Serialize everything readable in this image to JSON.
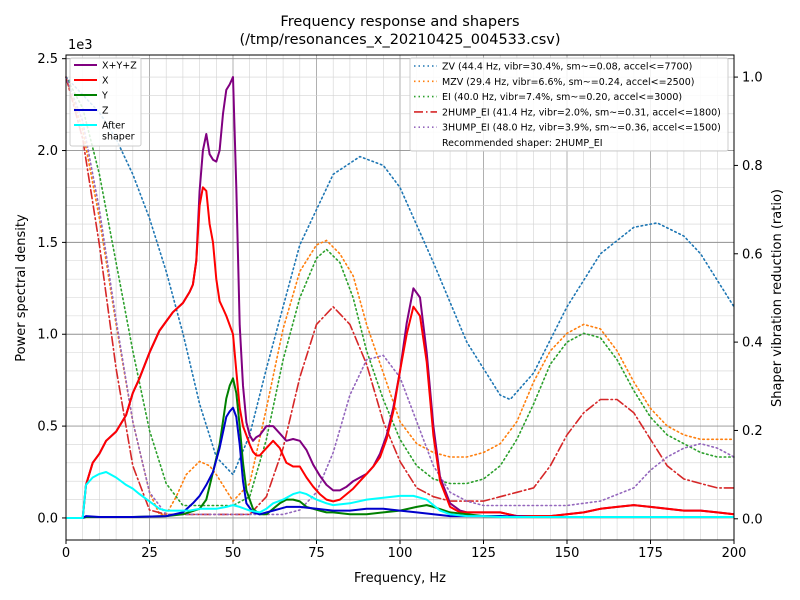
{
  "chart_data": {
    "type": "line",
    "title_line1": "Frequency response and shapers",
    "title_line2": "(/tmp/resonances_x_20210425_004533.csv)",
    "xlabel": "Frequency, Hz",
    "ylabel_left": "Power spectral density",
    "ylabel_right": "Shaper vibration reduction (ratio)",
    "left_scale_label": "1e3",
    "xlim": [
      0,
      200
    ],
    "ylim_left": [
      -0.12,
      2.52
    ],
    "ylim_right": [
      -0.048,
      1.05
    ],
    "x_ticks": [
      0,
      25,
      50,
      75,
      100,
      125,
      150,
      175,
      200
    ],
    "x_tick_labels": [
      "0",
      "25",
      "50",
      "75",
      "100",
      "125",
      "150",
      "175",
      "200"
    ],
    "y_ticks_left": [
      0,
      0.5,
      1.0,
      1.5,
      2.0,
      2.5
    ],
    "y_tick_labels_left": [
      "0.0",
      "0.5",
      "1.0",
      "1.5",
      "2.0",
      "2.5"
    ],
    "y_ticks_right": [
      0,
      0.2,
      0.4,
      0.6,
      0.8,
      1.0
    ],
    "y_tick_labels_right": [
      "0.0",
      "0.2",
      "0.4",
      "0.6",
      "0.8",
      "1.0"
    ],
    "grid": true,
    "psd_series": [
      {
        "name": "X+Y+Z",
        "color": "#800080",
        "width": 2,
        "x": [
          0,
          5,
          6,
          8,
          10,
          12,
          15,
          18,
          20,
          22,
          25,
          28,
          30,
          32,
          35,
          37,
          38,
          39,
          40,
          41,
          42,
          43,
          44,
          45,
          46,
          47,
          48,
          49,
          50,
          51,
          52,
          53,
          54,
          55,
          56,
          57,
          58,
          60,
          62,
          64,
          66,
          68,
          70,
          72,
          74,
          76,
          78,
          80,
          82,
          84,
          86,
          88,
          90,
          92,
          94,
          96,
          98,
          100,
          102,
          104,
          106,
          108,
          110,
          112,
          115,
          118,
          120,
          125,
          130,
          135,
          140,
          145,
          150,
          155,
          160,
          165,
          170,
          175,
          180,
          185,
          190,
          195,
          200
        ],
        "y": [
          0,
          0,
          0.18,
          0.3,
          0.35,
          0.42,
          0.47,
          0.56,
          0.68,
          0.76,
          0.9,
          1.02,
          1.07,
          1.12,
          1.17,
          1.23,
          1.27,
          1.4,
          1.78,
          2.0,
          2.09,
          1.98,
          1.95,
          1.94,
          2.0,
          2.2,
          2.33,
          2.36,
          2.4,
          1.8,
          1.05,
          0.72,
          0.52,
          0.45,
          0.42,
          0.44,
          0.45,
          0.5,
          0.5,
          0.46,
          0.42,
          0.43,
          0.42,
          0.37,
          0.29,
          0.23,
          0.18,
          0.15,
          0.15,
          0.17,
          0.2,
          0.22,
          0.24,
          0.28,
          0.35,
          0.45,
          0.6,
          0.8,
          1.06,
          1.25,
          1.2,
          0.9,
          0.5,
          0.22,
          0.08,
          0.04,
          0.03,
          0.03,
          0.03,
          0.01,
          0.01,
          0.01,
          0.02,
          0.03,
          0.05,
          0.06,
          0.07,
          0.06,
          0.05,
          0.04,
          0.04,
          0.03,
          0.02
        ]
      },
      {
        "name": "X",
        "color": "#ff0000",
        "width": 2,
        "x": [
          0,
          5,
          6,
          8,
          10,
          12,
          15,
          18,
          20,
          22,
          25,
          28,
          30,
          32,
          35,
          37,
          38,
          39,
          40,
          41,
          42,
          43,
          44,
          45,
          46,
          47,
          48,
          49,
          50,
          51,
          52,
          53,
          54,
          55,
          56,
          57,
          58,
          60,
          62,
          64,
          66,
          68,
          70,
          72,
          74,
          76,
          78,
          80,
          82,
          84,
          86,
          88,
          90,
          92,
          94,
          96,
          98,
          100,
          102,
          104,
          106,
          108,
          110,
          112,
          115,
          118,
          120,
          125,
          130,
          135,
          140,
          145,
          150,
          155,
          160,
          165,
          170,
          175,
          180,
          185,
          190,
          195,
          200
        ],
        "y": [
          0,
          0,
          0.18,
          0.3,
          0.35,
          0.42,
          0.47,
          0.56,
          0.68,
          0.76,
          0.9,
          1.02,
          1.07,
          1.12,
          1.17,
          1.23,
          1.27,
          1.4,
          1.7,
          1.8,
          1.78,
          1.6,
          1.5,
          1.3,
          1.18,
          1.14,
          1.1,
          1.05,
          1.0,
          0.8,
          0.6,
          0.5,
          0.45,
          0.4,
          0.36,
          0.34,
          0.34,
          0.38,
          0.42,
          0.38,
          0.3,
          0.28,
          0.28,
          0.22,
          0.17,
          0.13,
          0.1,
          0.09,
          0.1,
          0.13,
          0.16,
          0.2,
          0.24,
          0.28,
          0.33,
          0.43,
          0.58,
          0.8,
          1.0,
          1.15,
          1.1,
          0.85,
          0.45,
          0.2,
          0.06,
          0.03,
          0.03,
          0.03,
          0.03,
          0.01,
          0.01,
          0.01,
          0.02,
          0.03,
          0.05,
          0.06,
          0.07,
          0.06,
          0.05,
          0.04,
          0.04,
          0.03,
          0.02
        ]
      },
      {
        "name": "Y",
        "color": "#008000",
        "width": 2,
        "x": [
          0,
          5,
          6,
          10,
          20,
          30,
          35,
          40,
          42,
          44,
          46,
          48,
          49,
          50,
          51,
          52,
          53,
          54,
          56,
          58,
          60,
          62,
          64,
          66,
          68,
          70,
          72,
          74,
          76,
          78,
          80,
          85,
          90,
          95,
          100,
          105,
          108,
          110,
          115,
          120,
          125,
          130,
          135,
          140,
          150,
          160,
          170,
          180,
          190,
          200
        ],
        "y": [
          0,
          0,
          0.005,
          0.005,
          0.005,
          0.01,
          0.02,
          0.05,
          0.1,
          0.25,
          0.4,
          0.65,
          0.72,
          0.76,
          0.68,
          0.5,
          0.3,
          0.15,
          0.05,
          0.02,
          0.02,
          0.05,
          0.08,
          0.1,
          0.1,
          0.09,
          0.06,
          0.05,
          0.04,
          0.03,
          0.03,
          0.02,
          0.02,
          0.03,
          0.04,
          0.06,
          0.07,
          0.06,
          0.03,
          0.02,
          0.01,
          0.01,
          0.005,
          0.005,
          0.005,
          0.005,
          0.005,
          0.005,
          0.005,
          0.005
        ]
      },
      {
        "name": "Z",
        "color": "#0000cc",
        "width": 2,
        "x": [
          0,
          5,
          6,
          10,
          20,
          30,
          35,
          38,
          40,
          42,
          44,
          46,
          48,
          49,
          50,
          51,
          52,
          53,
          54,
          56,
          58,
          60,
          62,
          64,
          66,
          68,
          70,
          75,
          80,
          85,
          90,
          95,
          100,
          105,
          110,
          115,
          120,
          125,
          130,
          140,
          150,
          160,
          170,
          180,
          190,
          200
        ],
        "y": [
          0,
          0,
          0.01,
          0.005,
          0.005,
          0.01,
          0.03,
          0.08,
          0.12,
          0.18,
          0.25,
          0.38,
          0.55,
          0.58,
          0.6,
          0.55,
          0.4,
          0.2,
          0.08,
          0.03,
          0.02,
          0.03,
          0.04,
          0.05,
          0.06,
          0.06,
          0.06,
          0.05,
          0.04,
          0.04,
          0.05,
          0.05,
          0.04,
          0.03,
          0.02,
          0.01,
          0.01,
          0.01,
          0.01,
          0.005,
          0.005,
          0.005,
          0.005,
          0.005,
          0.005,
          0.005
        ]
      },
      {
        "name": "After\nshaper",
        "color": "#00ffff",
        "width": 2,
        "x": [
          0,
          5,
          6,
          8,
          10,
          12,
          15,
          18,
          20,
          22,
          25,
          28,
          30,
          32,
          35,
          37,
          40,
          42,
          45,
          48,
          50,
          52,
          55,
          58,
          60,
          62,
          65,
          68,
          70,
          72,
          75,
          78,
          80,
          85,
          90,
          95,
          100,
          102,
          104,
          106,
          108,
          110,
          112,
          115,
          120,
          125,
          130,
          140,
          150,
          160,
          170,
          180,
          190,
          200
        ],
        "y": [
          0,
          0,
          0.18,
          0.22,
          0.24,
          0.25,
          0.22,
          0.18,
          0.16,
          0.13,
          0.09,
          0.05,
          0.04,
          0.04,
          0.04,
          0.04,
          0.05,
          0.05,
          0.05,
          0.06,
          0.07,
          0.06,
          0.04,
          0.03,
          0.05,
          0.08,
          0.1,
          0.13,
          0.14,
          0.13,
          0.1,
          0.08,
          0.07,
          0.08,
          0.1,
          0.11,
          0.12,
          0.12,
          0.12,
          0.11,
          0.1,
          0.07,
          0.04,
          0.02,
          0.01,
          0.01,
          0.005,
          0.005,
          0.005,
          0.005,
          0.005,
          0.005,
          0.005,
          0.005
        ]
      }
    ],
    "shaper_series": [
      {
        "name": "ZV (44.4 Hz, vibr=30.4%, sm~=0.08, accel<=7700)",
        "color": "#1f77b4",
        "dash": "dotted",
        "x": [
          0,
          5,
          10,
          15,
          20,
          25,
          30,
          35,
          40,
          45,
          50,
          55,
          60,
          70,
          80,
          88,
          95,
          100,
          110,
          120,
          130,
          133,
          140,
          150,
          160,
          170,
          177,
          185,
          190,
          195,
          200
        ],
        "y": [
          1.0,
          0.96,
          0.92,
          0.86,
          0.78,
          0.68,
          0.56,
          0.42,
          0.26,
          0.14,
          0.1,
          0.19,
          0.34,
          0.62,
          0.78,
          0.82,
          0.8,
          0.75,
          0.58,
          0.4,
          0.28,
          0.27,
          0.33,
          0.48,
          0.6,
          0.66,
          0.67,
          0.64,
          0.6,
          0.54,
          0.48
        ]
      },
      {
        "name": "MZV (29.4 Hz, vibr=6.6%, sm~=0.24, accel<=2500)",
        "color": "#ff7f0e",
        "dash": "dotted",
        "x": [
          0,
          5,
          10,
          15,
          20,
          25,
          28,
          30,
          33,
          36,
          40,
          43,
          45,
          50,
          55,
          60,
          65,
          70,
          75,
          78,
          82,
          86,
          90,
          95,
          100,
          105,
          110,
          115,
          120,
          125,
          130,
          135,
          140,
          145,
          150,
          155,
          160,
          165,
          170,
          175,
          180,
          185,
          190,
          195,
          200
        ],
        "y": [
          1.0,
          0.88,
          0.68,
          0.44,
          0.22,
          0.06,
          0.01,
          0.01,
          0.05,
          0.1,
          0.13,
          0.12,
          0.1,
          0.04,
          0.08,
          0.25,
          0.43,
          0.56,
          0.62,
          0.63,
          0.6,
          0.55,
          0.44,
          0.33,
          0.22,
          0.17,
          0.15,
          0.14,
          0.14,
          0.15,
          0.17,
          0.22,
          0.31,
          0.38,
          0.42,
          0.44,
          0.43,
          0.38,
          0.31,
          0.25,
          0.21,
          0.19,
          0.18,
          0.18,
          0.18
        ]
      },
      {
        "name": "EI (40.0 Hz, vibr=7.4%, sm~=0.20, accel<=3000)",
        "color": "#2ca02c",
        "dash": "dotted",
        "x": [
          0,
          5,
          10,
          15,
          20,
          25,
          30,
          35,
          40,
          45,
          50,
          55,
          60,
          65,
          70,
          75,
          78,
          82,
          86,
          90,
          95,
          100,
          105,
          110,
          115,
          120,
          125,
          130,
          135,
          140,
          145,
          150,
          155,
          160,
          165,
          170,
          175,
          180,
          185,
          190,
          195,
          200
        ],
        "y": [
          1.0,
          0.93,
          0.78,
          0.58,
          0.38,
          0.2,
          0.08,
          0.03,
          0.03,
          0.03,
          0.03,
          0.05,
          0.18,
          0.36,
          0.5,
          0.59,
          0.61,
          0.58,
          0.5,
          0.38,
          0.27,
          0.18,
          0.12,
          0.09,
          0.08,
          0.08,
          0.09,
          0.12,
          0.18,
          0.26,
          0.35,
          0.4,
          0.42,
          0.41,
          0.36,
          0.29,
          0.23,
          0.19,
          0.17,
          0.15,
          0.14,
          0.14
        ]
      },
      {
        "name": "2HUMP_EI (41.4 Hz, vibr=2.0%, sm~=0.31, accel<=1800)",
        "color": "#d62728",
        "dash": "dashdot",
        "x": [
          0,
          5,
          10,
          15,
          20,
          25,
          30,
          35,
          40,
          45,
          50,
          55,
          60,
          65,
          70,
          75,
          80,
          85,
          90,
          95,
          100,
          105,
          110,
          115,
          120,
          125,
          130,
          135,
          140,
          145,
          150,
          155,
          160,
          165,
          170,
          175,
          180,
          185,
          190,
          195,
          200
        ],
        "y": [
          1.0,
          0.86,
          0.62,
          0.34,
          0.12,
          0.02,
          0.01,
          0.01,
          0.01,
          0.01,
          0.01,
          0.01,
          0.05,
          0.16,
          0.32,
          0.44,
          0.48,
          0.44,
          0.35,
          0.22,
          0.13,
          0.07,
          0.05,
          0.04,
          0.04,
          0.04,
          0.05,
          0.06,
          0.07,
          0.12,
          0.19,
          0.24,
          0.27,
          0.27,
          0.24,
          0.18,
          0.12,
          0.09,
          0.08,
          0.07,
          0.07
        ]
      },
      {
        "name": "3HUMP_EI (48.0 Hz, vibr=3.9%, sm~=0.36, accel<=1500)",
        "color": "#9467bd",
        "dash": "dotted",
        "x": [
          0,
          5,
          10,
          15,
          20,
          25,
          30,
          35,
          40,
          45,
          50,
          55,
          60,
          65,
          70,
          75,
          80,
          85,
          90,
          95,
          100,
          105,
          110,
          115,
          120,
          125,
          130,
          140,
          150,
          160,
          170,
          175,
          180,
          185,
          190,
          195,
          200
        ],
        "y": [
          1.0,
          0.9,
          0.7,
          0.45,
          0.22,
          0.06,
          0.01,
          0.01,
          0.01,
          0.01,
          0.01,
          0.01,
          0.01,
          0.01,
          0.02,
          0.06,
          0.15,
          0.28,
          0.36,
          0.37,
          0.32,
          0.22,
          0.12,
          0.06,
          0.04,
          0.03,
          0.03,
          0.03,
          0.03,
          0.04,
          0.07,
          0.11,
          0.14,
          0.16,
          0.17,
          0.16,
          0.14
        ]
      }
    ],
    "legend_left": [
      "X+Y+Z",
      "X",
      "Y",
      "Z",
      "After\nshaper"
    ],
    "legend_right_extra": "Recommended shaper: 2HUMP_EI"
  }
}
